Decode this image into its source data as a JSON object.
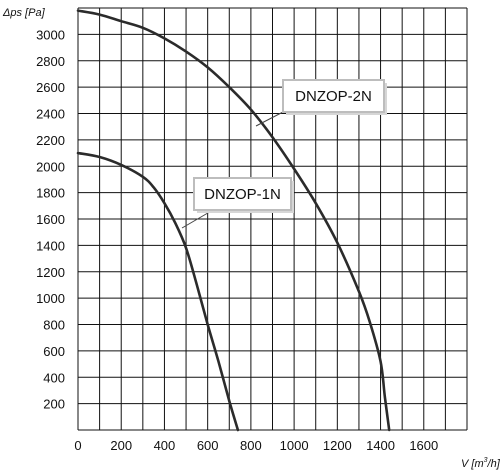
{
  "chart_data": {
    "type": "line",
    "ylabel": "Δps [Pa]",
    "xlabel_prefix": "V [m",
    "xlabel_exp": "3",
    "xlabel_suffix": "/h]",
    "xlim": [
      0,
      1800
    ],
    "ylim": [
      0,
      3200
    ],
    "x_ticks": [
      0,
      200,
      400,
      600,
      800,
      1000,
      1200,
      1400,
      1600
    ],
    "y_ticks": [
      200,
      400,
      600,
      800,
      1000,
      1200,
      1400,
      1600,
      1800,
      2000,
      2200,
      2400,
      2600,
      2800,
      3000
    ],
    "grid": true,
    "series": [
      {
        "name": "DNZOP-2N",
        "x": [
          0,
          100,
          200,
          300,
          400,
          500,
          600,
          700,
          800,
          900,
          1000,
          1100,
          1200,
          1300,
          1350,
          1400,
          1420,
          1440
        ],
        "y": [
          3180,
          3150,
          3100,
          3050,
          2970,
          2870,
          2750,
          2600,
          2430,
          2220,
          1980,
          1720,
          1420,
          1050,
          820,
          520,
          250,
          0
        ]
      },
      {
        "name": "DNZOP-1N",
        "x": [
          0,
          100,
          200,
          300,
          350,
          400,
          450,
          500,
          550,
          600,
          650,
          700,
          740
        ],
        "y": [
          2100,
          2070,
          2010,
          1920,
          1840,
          1720,
          1570,
          1380,
          1100,
          800,
          520,
          220,
          0
        ]
      }
    ]
  }
}
